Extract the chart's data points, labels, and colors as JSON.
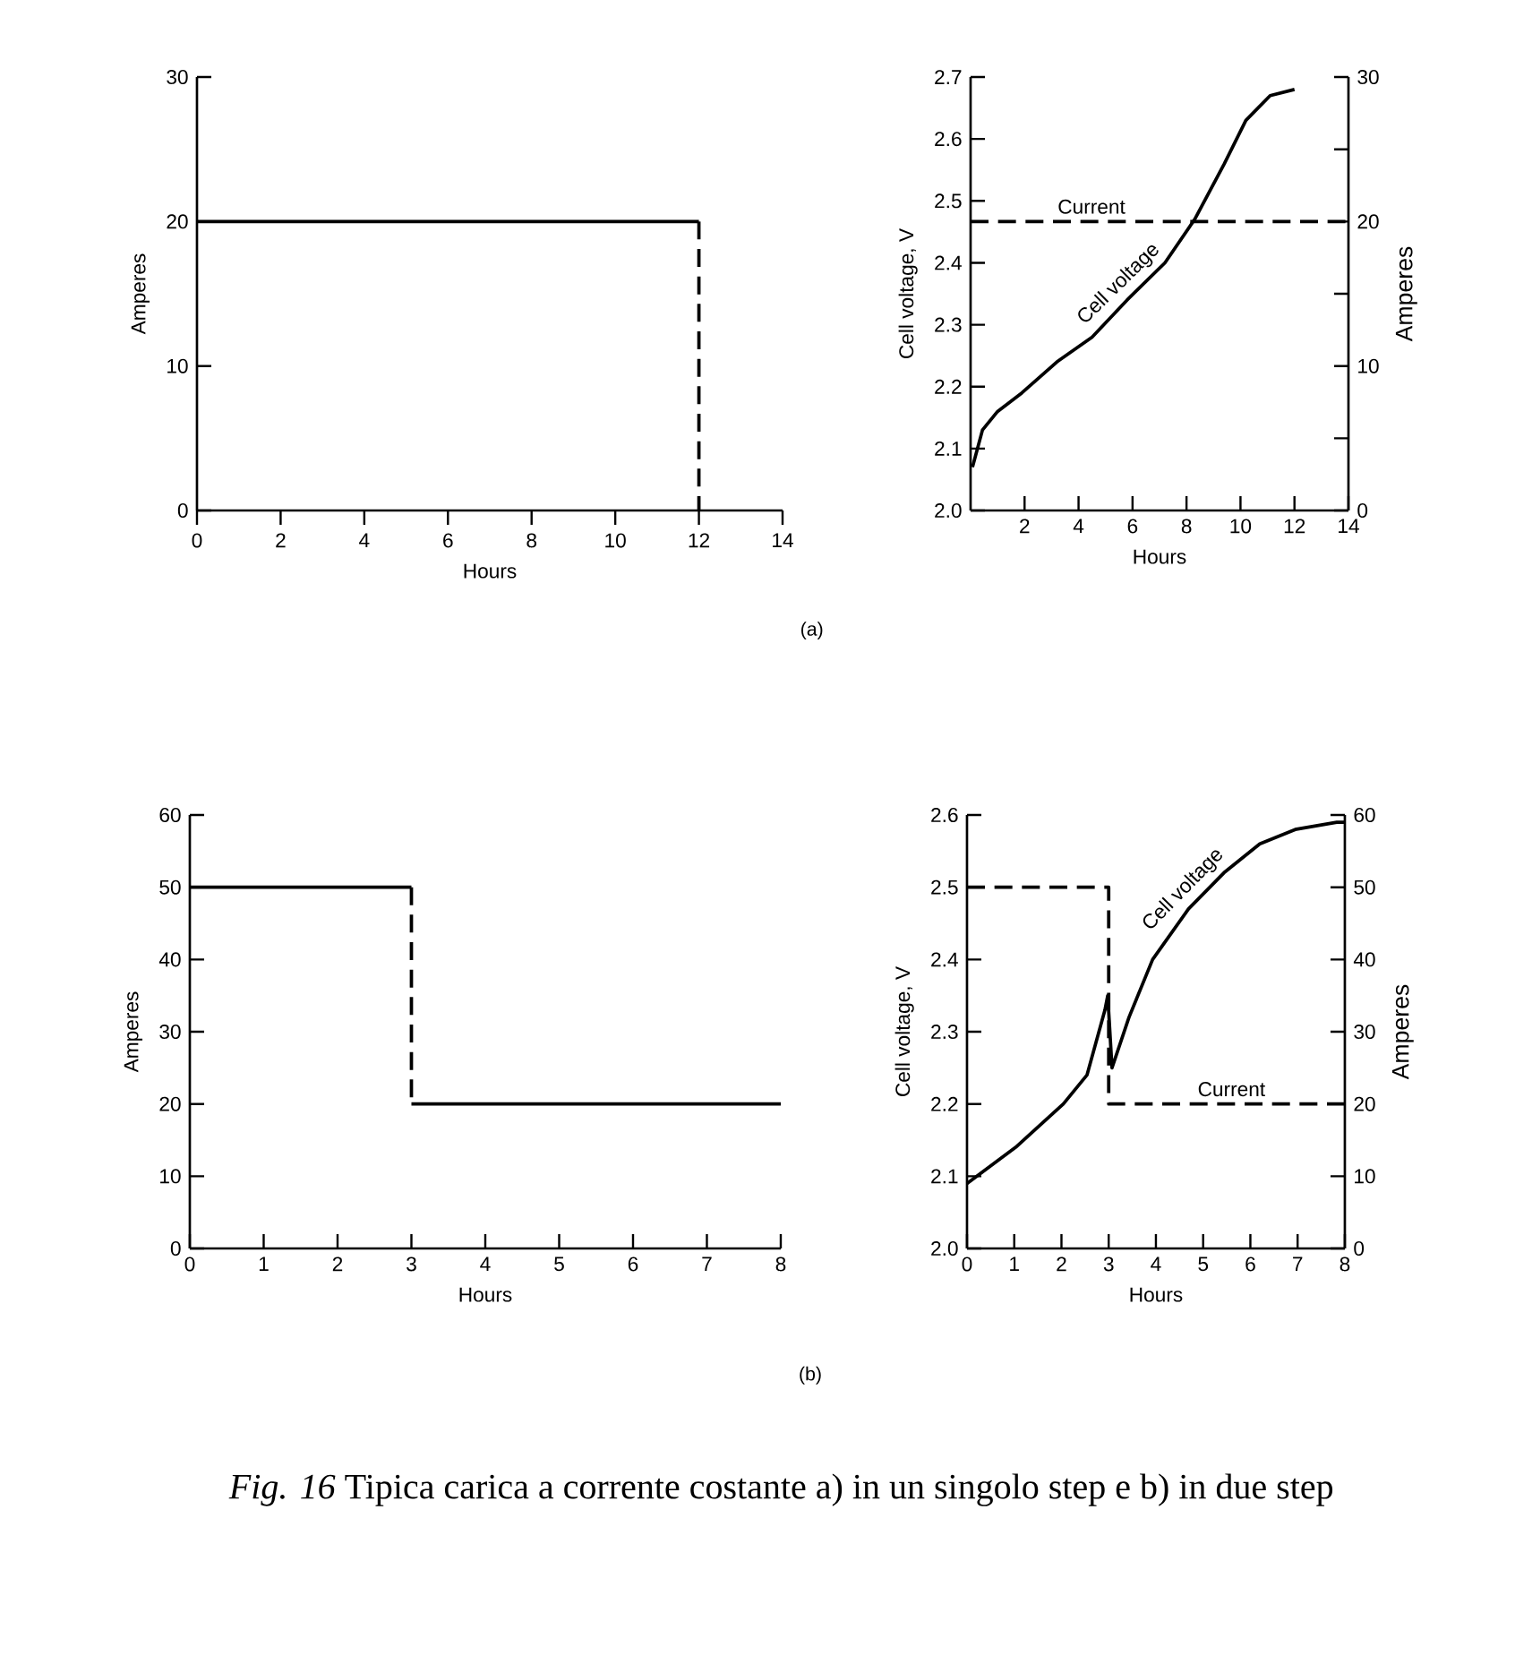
{
  "chart_data": [
    {
      "type": "line",
      "xlabel": "Hours",
      "ylabel": "Amperes",
      "xlim": [
        0,
        14
      ],
      "ylim": [
        0,
        30
      ],
      "xticks": [
        0,
        2,
        4,
        6,
        8,
        10,
        12,
        14
      ],
      "yticks": [
        0,
        10,
        20,
        30
      ],
      "series": [
        {
          "color": "#000000",
          "line_style": "solid",
          "x": [
            0,
            12
          ],
          "values": [
            20,
            20
          ]
        },
        {
          "color": "#000000",
          "line_style": "dashed",
          "x": [
            12,
            12
          ],
          "values": [
            20,
            0
          ]
        }
      ],
      "annotations": [
        "(a)"
      ]
    },
    {
      "type": "line",
      "xlabel": "Hours",
      "ylabel": "Cell voltage, V",
      "y2label": "Amperes",
      "xlim": [
        0,
        14
      ],
      "ylim": [
        2.0,
        2.7
      ],
      "y2lim": [
        0,
        30
      ],
      "xticks": [
        2,
        4,
        6,
        8,
        10,
        12,
        14
      ],
      "yticks": [
        {
          "value": 2.0,
          "label": "2.0"
        },
        2.1,
        2.2,
        2.3,
        2.4,
        2.5,
        2.6,
        2.7
      ],
      "y2ticks": [
        0,
        {
          "value": 5,
          "label": null
        },
        10,
        {
          "value": 15,
          "label": null
        },
        20,
        {
          "value": 25,
          "label": null
        },
        30
      ],
      "series": [
        {
          "name": "Cell voltage",
          "color": "#000000",
          "line_style": "solid",
          "x": [
            0.07,
            0.44,
            1.0,
            1.9,
            3.2,
            4.5,
            5.8,
            7.2,
            8.3,
            9.4,
            10.2,
            11.1,
            12.0
          ],
          "values": [
            2.07,
            2.13,
            2.16,
            2.19,
            2.24,
            2.28,
            2.34,
            2.4,
            2.47,
            2.56,
            2.63,
            2.67,
            2.68
          ]
        },
        {
          "name": "Current",
          "color": "#000000",
          "line_style": "dashed",
          "axis": "y2",
          "x": [
            0,
            14
          ],
          "values": [
            20,
            20
          ]
        }
      ]
    },
    {
      "type": "line",
      "xlabel": "Hours",
      "ylabel": "Amperes",
      "xlim": [
        0,
        8
      ],
      "ylim": [
        0,
        60
      ],
      "xticks": [
        0,
        1,
        2,
        3,
        4,
        5,
        6,
        7,
        8
      ],
      "yticks": [
        0,
        10,
        20,
        30,
        40,
        50,
        60
      ],
      "series": [
        {
          "color": "#000000",
          "line_style": "solid",
          "x": [
            0,
            3
          ],
          "values": [
            50,
            50
          ]
        },
        {
          "color": "#000000",
          "line_style": "dashed",
          "x": [
            3,
            3
          ],
          "values": [
            50,
            20
          ]
        },
        {
          "color": "#000000",
          "line_style": "solid",
          "x": [
            3,
            8
          ],
          "values": [
            20,
            20
          ]
        }
      ],
      "annotations": [
        "(b)"
      ]
    },
    {
      "type": "line",
      "xlabel": "Hours",
      "ylabel": "Cell voltage, V",
      "y2label": "Amperes",
      "xlim": [
        0,
        8
      ],
      "ylim": [
        2.0,
        2.6
      ],
      "y2lim": [
        0,
        60
      ],
      "xticks": [
        0,
        1,
        2,
        3,
        4,
        5,
        6,
        7,
        8
      ],
      "yticks": [
        {
          "value": 2.0,
          "label": "2.0"
        },
        2.1,
        2.2,
        2.3,
        2.4,
        2.5,
        2.6
      ],
      "y2ticks": [
        0,
        10,
        20,
        30,
        40,
        50,
        60
      ],
      "series": [
        {
          "name": "Cell voltage",
          "color": "#000000",
          "line_style": "solid",
          "x": [
            0,
            1.03,
            2.04,
            2.54,
            2.92,
            2.98,
            3.07,
            3.43,
            3.93,
            4.69,
            5.44,
            6.2,
            6.95,
            7.83,
            8
          ],
          "values": [
            2.09,
            2.14,
            2.2,
            2.24,
            2.33,
            2.35,
            2.25,
            2.32,
            2.4,
            2.47,
            2.52,
            2.56,
            2.58,
            2.59,
            2.59
          ]
        },
        {
          "name": "Current",
          "color": "#000000",
          "line_style": "dashed",
          "axis": "y2",
          "x": [
            0,
            3,
            3,
            8
          ],
          "values": [
            50,
            50,
            20,
            20
          ]
        }
      ],
      "annotations": [
        "*Fig. 16* Tipica carica a corrente costante a) in un singolo step e b) in due step"
      ]
    }
  ]
}
